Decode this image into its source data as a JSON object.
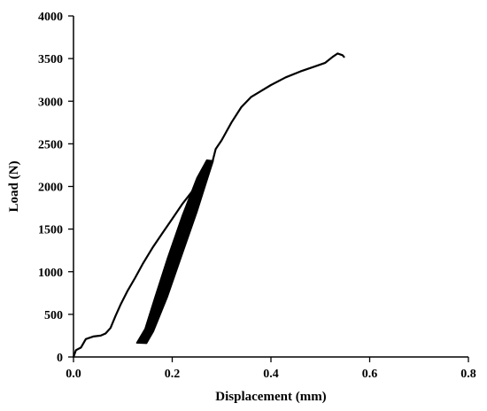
{
  "chart_data": {
    "type": "line",
    "title": "",
    "xlabel": "Displacement (mm)",
    "ylabel": "Load (N)",
    "xlim": [
      0,
      0.8
    ],
    "ylim": [
      0,
      4000
    ],
    "x_ticks": [
      0,
      0.2,
      0.4,
      0.6,
      0.8
    ],
    "x_tick_labels": [
      "0.0",
      "0.2",
      "0.4",
      "0.6",
      "0.8"
    ],
    "y_ticks": [
      0,
      500,
      1000,
      1500,
      2000,
      2500,
      3000,
      3500,
      4000
    ],
    "y_tick_labels": [
      "0",
      "500",
      "1000",
      "1500",
      "2000",
      "2500",
      "3000",
      "3500",
      "4000"
    ],
    "grid": false,
    "legend": "none",
    "line_color": "#000000",
    "series": [
      {
        "values": [
          [
            0.0,
            0
          ],
          [
            0.005,
            80
          ],
          [
            0.015,
            110
          ],
          [
            0.025,
            210
          ],
          [
            0.04,
            240
          ],
          [
            0.055,
            250
          ],
          [
            0.065,
            275
          ],
          [
            0.075,
            340
          ],
          [
            0.085,
            480
          ],
          [
            0.095,
            610
          ],
          [
            0.11,
            780
          ],
          [
            0.125,
            930
          ],
          [
            0.14,
            1090
          ],
          [
            0.16,
            1280
          ],
          [
            0.18,
            1450
          ],
          [
            0.2,
            1620
          ],
          [
            0.22,
            1790
          ],
          [
            0.24,
            1940
          ],
          [
            0.26,
            2100
          ],
          [
            0.275,
            2240
          ],
          [
            0.282,
            2300
          ],
          [
            0.288,
            2440
          ],
          [
            0.3,
            2540
          ],
          [
            0.32,
            2750
          ],
          [
            0.34,
            2930
          ],
          [
            0.36,
            3050
          ],
          [
            0.38,
            3120
          ],
          [
            0.4,
            3190
          ],
          [
            0.43,
            3280
          ],
          [
            0.46,
            3350
          ],
          [
            0.49,
            3410
          ],
          [
            0.51,
            3450
          ],
          [
            0.525,
            3520
          ],
          [
            0.535,
            3560
          ],
          [
            0.545,
            3540
          ],
          [
            0.548,
            3520
          ]
        ]
      },
      {
        "values": [
          [
            0.128,
            165
          ],
          [
            0.148,
            160
          ],
          [
            0.162,
            300
          ],
          [
            0.19,
            700
          ],
          [
            0.22,
            1200
          ],
          [
            0.25,
            1700
          ],
          [
            0.272,
            2100
          ],
          [
            0.283,
            2300
          ],
          [
            0.27,
            2310
          ],
          [
            0.25,
            2100
          ],
          [
            0.22,
            1650
          ],
          [
            0.19,
            1150
          ],
          [
            0.165,
            700
          ],
          [
            0.145,
            330
          ],
          [
            0.128,
            165
          ]
        ]
      }
    ]
  }
}
